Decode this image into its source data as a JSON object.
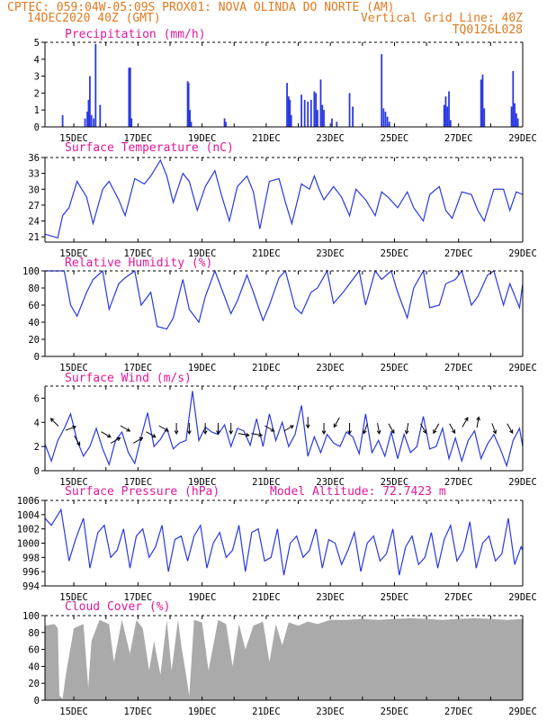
{
  "header": {
    "line1": "CPTEC:  059:04W-05:09S  PROX01: NOVA OLINDA DO NORTE (AM)",
    "line2_left": "14DEC2020 40Z (GMT)",
    "line2_right": "Vertical Grid Line: 40Z",
    "line3_right": "TQ0126L028"
  },
  "x_axis": {
    "ticks": [
      "15DEC",
      "17DEC",
      "19DEC",
      "21DEC",
      "23DEC",
      "25DEC",
      "27DEC",
      "29DEC"
    ],
    "tick_days": [
      15,
      17,
      19,
      21,
      23,
      25,
      27,
      29
    ],
    "range": [
      14.1,
      29.0
    ]
  },
  "colors": {
    "line": "#2a38e0",
    "title": "#e0189a",
    "header": "#e07a1f",
    "cloud": "#aaaaaa",
    "wind_arrow": "#000000"
  },
  "chart_data": [
    {
      "type": "bar",
      "title": "Precipitation (mm/h)",
      "ylim": [
        0,
        5
      ],
      "yticks": [
        "0",
        "1",
        "2",
        "3",
        "4",
        "5"
      ],
      "bar_width_days": 0.05,
      "x": [
        14.65,
        15.35,
        15.42,
        15.46,
        15.5,
        15.55,
        15.62,
        15.68,
        15.82,
        16.72,
        16.76,
        16.8,
        18.55,
        18.58,
        18.62,
        18.66,
        19.7,
        19.74,
        21.65,
        21.7,
        21.74,
        21.78,
        22.1,
        22.2,
        22.3,
        22.4,
        22.5,
        22.55,
        22.6,
        22.7,
        22.75,
        22.8,
        23.05,
        23.2,
        23.6,
        23.7,
        24.6,
        24.66,
        24.72,
        24.78,
        24.84,
        26.55,
        26.6,
        26.65,
        26.7,
        26.75,
        27.7,
        27.75,
        27.8,
        28.65,
        28.7,
        28.75,
        28.8,
        28.85
      ],
      "values": [
        0.7,
        0.5,
        0.9,
        1.6,
        3.0,
        0.7,
        0.5,
        4.9,
        1.3,
        3.5,
        3.5,
        0.5,
        2.7,
        2.6,
        1.0,
        0.3,
        0.5,
        0.3,
        2.6,
        1.8,
        1.6,
        0.7,
        1.9,
        1.6,
        1.5,
        1.6,
        2.1,
        2.0,
        1.0,
        2.8,
        1.3,
        1.0,
        0.5,
        0.3,
        2.0,
        1.2,
        4.3,
        1.1,
        0.9,
        0.6,
        0.3,
        1.3,
        1.8,
        1.2,
        2.1,
        0.4,
        2.8,
        3.1,
        1.1,
        1.2,
        3.3,
        1.4,
        0.8,
        0.5
      ]
    },
    {
      "type": "line",
      "title": "Surface Temperature (nC)",
      "ylim": [
        20,
        36
      ],
      "yticks": [
        "21",
        "24",
        "27",
        "30",
        "33",
        "36"
      ],
      "ytick_values": [
        21,
        24,
        27,
        30,
        33,
        36
      ],
      "x": [
        14.1,
        14.5,
        14.65,
        14.85,
        15.1,
        15.4,
        15.6,
        15.9,
        16.1,
        16.4,
        16.6,
        16.9,
        17.2,
        17.4,
        17.7,
        17.9,
        18.1,
        18.4,
        18.6,
        18.85,
        19.1,
        19.4,
        19.6,
        19.85,
        20.1,
        20.4,
        20.6,
        20.8,
        21.1,
        21.4,
        21.6,
        21.8,
        22.1,
        22.35,
        22.5,
        22.65,
        22.8,
        23.1,
        23.35,
        23.6,
        23.8,
        24.1,
        24.4,
        24.6,
        24.8,
        25.1,
        25.4,
        25.6,
        25.9,
        26.1,
        26.4,
        26.6,
        26.8,
        27.1,
        27.4,
        27.6,
        27.8,
        28.1,
        28.4,
        28.6,
        28.8,
        29.0
      ],
      "values": [
        21.5,
        20.8,
        25.0,
        26.5,
        31.5,
        28.5,
        23.5,
        30.0,
        31.5,
        28.0,
        25.0,
        32.0,
        31.0,
        32.5,
        35.5,
        32.5,
        27.5,
        33.0,
        31.5,
        26.0,
        30.5,
        33.5,
        29.0,
        24.0,
        30.5,
        32.5,
        29.5,
        22.5,
        31.5,
        32.0,
        27.5,
        23.5,
        31.0,
        30.0,
        32.5,
        30.0,
        28.0,
        30.5,
        28.5,
        25.0,
        30.0,
        28.0,
        25.0,
        29.5,
        28.5,
        26.5,
        29.5,
        26.5,
        24.0,
        29.0,
        30.5,
        26.0,
        24.5,
        29.5,
        29.0,
        26.0,
        24.0,
        30.0,
        30.0,
        26.0,
        29.5,
        29.0
      ]
    },
    {
      "type": "line",
      "title": "Relative Humidity (%)",
      "ylim": [
        0,
        100
      ],
      "yticks": [
        "0",
        "20",
        "40",
        "60",
        "80",
        "100"
      ],
      "ytick_values": [
        0,
        20,
        40,
        60,
        80,
        100
      ],
      "x": [
        14.1,
        14.4,
        14.7,
        14.9,
        15.1,
        15.4,
        15.6,
        15.9,
        16.1,
        16.4,
        16.6,
        16.9,
        17.1,
        17.4,
        17.6,
        17.9,
        18.1,
        18.4,
        18.6,
        18.9,
        19.1,
        19.4,
        19.6,
        19.9,
        20.1,
        20.4,
        20.6,
        20.9,
        21.1,
        21.4,
        21.6,
        21.9,
        22.1,
        22.4,
        22.6,
        22.9,
        23.1,
        23.4,
        23.6,
        23.9,
        24.1,
        24.4,
        24.6,
        24.9,
        25.1,
        25.4,
        25.6,
        25.9,
        26.1,
        26.4,
        26.6,
        26.9,
        27.1,
        27.4,
        27.6,
        27.9,
        28.1,
        28.4,
        28.6,
        28.9,
        29.0
      ],
      "values": [
        100,
        100,
        100,
        60,
        47,
        75,
        90,
        100,
        55,
        85,
        92,
        100,
        60,
        75,
        35,
        32,
        45,
        90,
        55,
        40,
        70,
        100,
        80,
        50,
        65,
        95,
        75,
        42,
        60,
        92,
        100,
        57,
        50,
        75,
        80,
        100,
        62,
        75,
        85,
        100,
        60,
        100,
        90,
        100,
        75,
        45,
        80,
        100,
        57,
        60,
        85,
        90,
        100,
        60,
        70,
        95,
        100,
        60,
        85,
        57,
        85
      ]
    },
    {
      "type": "line",
      "title": "Surface Wind (m/s)",
      "ylim": [
        0,
        7
      ],
      "yticks": [
        "0",
        "2",
        "4",
        "6"
      ],
      "ytick_values": [
        0,
        2,
        4,
        6
      ],
      "x": [
        14.1,
        14.3,
        14.5,
        14.7,
        14.9,
        15.1,
        15.3,
        15.5,
        15.7,
        15.9,
        16.1,
        16.3,
        16.5,
        16.7,
        16.9,
        17.1,
        17.3,
        17.5,
        17.7,
        17.9,
        18.1,
        18.3,
        18.5,
        18.7,
        18.9,
        19.1,
        19.3,
        19.5,
        19.7,
        19.9,
        20.1,
        20.3,
        20.5,
        20.7,
        20.9,
        21.1,
        21.3,
        21.5,
        21.7,
        21.9,
        22.1,
        22.3,
        22.5,
        22.7,
        22.9,
        23.1,
        23.3,
        23.5,
        23.7,
        23.9,
        24.1,
        24.3,
        24.5,
        24.7,
        24.9,
        25.1,
        25.3,
        25.5,
        25.7,
        25.9,
        26.1,
        26.3,
        26.5,
        26.7,
        26.9,
        27.1,
        27.3,
        27.5,
        27.7,
        27.9,
        28.1,
        28.3,
        28.5,
        28.7,
        28.9,
        29.0
      ],
      "values": [
        2.2,
        0.8,
        2.5,
        3.5,
        4.7,
        2.5,
        1.2,
        2.0,
        3.5,
        1.8,
        0.5,
        2.5,
        3.2,
        1.5,
        0.6,
        2.8,
        4.8,
        2.0,
        2.6,
        3.5,
        1.8,
        2.3,
        2.5,
        6.6,
        2.5,
        3.6,
        3.2,
        3.0,
        3.8,
        2.0,
        3.5,
        3.3,
        2.1,
        4.3,
        2.0,
        4.7,
        2.5,
        4.0,
        2.0,
        3.0,
        5.4,
        1.2,
        2.8,
        1.5,
        3.0,
        2.3,
        2.0,
        3.2,
        2.8,
        1.4,
        4.7,
        1.5,
        2.5,
        1.2,
        3.2,
        1.0,
        3.0,
        1.5,
        2.0,
        4.5,
        1.8,
        2.0,
        3.5,
        1.0,
        2.7,
        0.8,
        2.5,
        3.3,
        1.0,
        2.2,
        3.0,
        1.8,
        0.4,
        2.5,
        3.5,
        2.0
      ],
      "wind_arrows": {
        "x": [
          14.4,
          14.9,
          15.1,
          16.0,
          16.3,
          16.6,
          17.0,
          17.4,
          17.8,
          18.2,
          18.6,
          19.1,
          19.5,
          19.9,
          20.3,
          20.7,
          21.1,
          21.7,
          22.3,
          22.8,
          23.2,
          23.6,
          24.1,
          24.5,
          24.9,
          25.4,
          25.9,
          26.3,
          26.8,
          27.2,
          27.6,
          28.1,
          28.6
        ],
        "y": [
          4.0,
          3.5,
          2.5,
          3.0,
          2.5,
          3.5,
          2.5,
          3.0,
          3.5,
          3.5,
          3.5,
          3.5,
          3.5,
          3.5,
          3.0,
          3.0,
          3.5,
          3.5,
          4.0,
          3.5,
          4.0,
          3.5,
          3.5,
          3.5,
          3.5,
          3.5,
          3.5,
          3.5,
          3.5,
          4.0,
          4.0,
          3.5,
          3.5
        ],
        "dir_deg": [
          135,
          20,
          300,
          330,
          30,
          330,
          30,
          330,
          330,
          270,
          270,
          270,
          270,
          270,
          350,
          350,
          330,
          30,
          270,
          270,
          240,
          270,
          250,
          280,
          300,
          260,
          300,
          240,
          300,
          60,
          80,
          290,
          300
        ]
      }
    },
    {
      "type": "line",
      "title": "Surface Pressure (hPa)",
      "annotation": "Model Altitude: 72.7423 m",
      "ylim": [
        994,
        1006
      ],
      "yticks": [
        "994",
        "996",
        "998",
        "1000",
        "1002",
        "1004",
        "1006"
      ],
      "ytick_values": [
        994,
        996,
        998,
        1000,
        1002,
        1004,
        1006
      ],
      "x": [
        14.1,
        14.3,
        14.6,
        14.85,
        15.05,
        15.3,
        15.5,
        15.75,
        15.95,
        16.15,
        16.35,
        16.55,
        16.75,
        16.95,
        17.15,
        17.35,
        17.55,
        17.75,
        17.95,
        18.15,
        18.35,
        18.55,
        18.75,
        18.95,
        19.15,
        19.35,
        19.55,
        19.75,
        19.95,
        20.15,
        20.35,
        20.55,
        20.75,
        20.95,
        21.15,
        21.35,
        21.55,
        21.75,
        21.95,
        22.15,
        22.35,
        22.55,
        22.75,
        22.95,
        23.15,
        23.35,
        23.55,
        23.75,
        23.95,
        24.15,
        24.35,
        24.55,
        24.75,
        24.95,
        25.15,
        25.35,
        25.55,
        25.75,
        25.95,
        26.15,
        26.35,
        26.55,
        26.75,
        26.95,
        27.15,
        27.35,
        27.55,
        27.75,
        27.95,
        28.15,
        28.35,
        28.55,
        28.75,
        28.95,
        29.0
      ],
      "values": [
        1003.5,
        1002.5,
        1004.7,
        997.5,
        1000.5,
        1003.5,
        996.5,
        1001.5,
        1002.5,
        998.0,
        999.0,
        1002.0,
        996.5,
        1001.0,
        1002.0,
        998.0,
        999.5,
        1002.5,
        996.0,
        1000.5,
        1001.0,
        997.5,
        1001.0,
        1002.5,
        996.5,
        1000.0,
        1001.5,
        998.0,
        999.0,
        1002.5,
        996.0,
        1001.5,
        1002.0,
        997.5,
        998.0,
        1002.0,
        995.5,
        1000.0,
        1001.0,
        998.0,
        999.0,
        1002.0,
        996.5,
        1000.5,
        1000.0,
        997.0,
        999.0,
        1001.5,
        996.0,
        1000.0,
        1001.0,
        997.5,
        998.5,
        1002.0,
        995.5,
        999.5,
        1001.0,
        997.0,
        998.0,
        1001.5,
        996.5,
        1000.5,
        1002.5,
        997.5,
        999.0,
        1003.0,
        996.5,
        1000.0,
        1001.0,
        997.5,
        998.5,
        1003.5,
        997.0,
        999.5,
        999.0
      ]
    },
    {
      "type": "area",
      "title": "Cloud Cover (%)",
      "ylim": [
        0,
        100
      ],
      "yticks": [
        "0",
        "20",
        "40",
        "60",
        "80",
        "100"
      ],
      "ytick_values": [
        0,
        20,
        40,
        60,
        80,
        100
      ],
      "x": [
        14.1,
        14.4,
        14.5,
        14.55,
        14.65,
        14.75,
        15.0,
        15.3,
        15.45,
        15.55,
        15.8,
        16.1,
        16.25,
        16.5,
        16.75,
        16.95,
        17.15,
        17.35,
        17.5,
        17.7,
        17.9,
        18.05,
        18.25,
        18.35,
        18.5,
        18.6,
        18.75,
        19.0,
        19.2,
        19.5,
        19.75,
        19.95,
        20.15,
        20.35,
        20.6,
        20.9,
        21.1,
        21.3,
        21.5,
        21.7,
        22.0,
        22.3,
        22.6,
        23.0,
        23.5,
        24.0,
        24.5,
        25.0,
        25.5,
        26.0,
        26.5,
        27.0,
        27.5,
        28.0,
        28.5,
        29.0
      ],
      "values": [
        88,
        90,
        85,
        5,
        2,
        30,
        85,
        90,
        15,
        70,
        95,
        90,
        45,
        95,
        55,
        95,
        85,
        35,
        70,
        30,
        95,
        35,
        95,
        65,
        30,
        5,
        95,
        92,
        35,
        95,
        90,
        40,
        90,
        60,
        88,
        93,
        45,
        90,
        65,
        92,
        88,
        93,
        90,
        95,
        95,
        96,
        95,
        96,
        97,
        96,
        95,
        96,
        97,
        96,
        95,
        96
      ]
    }
  ]
}
